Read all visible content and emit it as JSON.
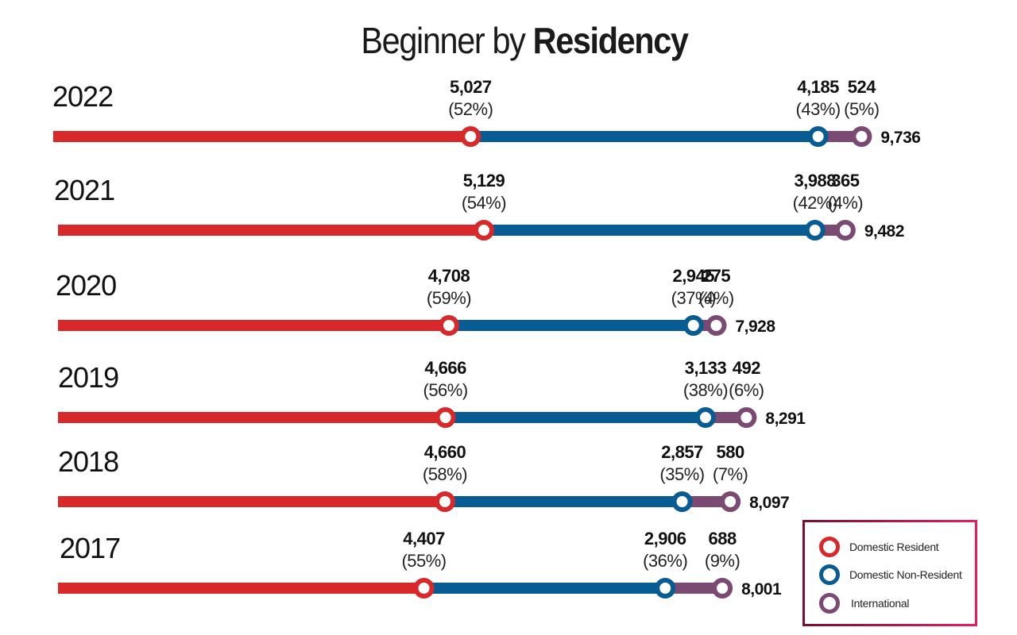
{
  "title": {
    "light": "Beginner by ",
    "bold": "Residency"
  },
  "legend": {
    "items": [
      {
        "label": "Domestic Resident",
        "color": "#d8282a"
      },
      {
        "label": "Domestic Non-Resident",
        "color": "#075c94"
      },
      {
        "label": "International",
        "color": "#7b4a72"
      }
    ]
  },
  "chart_data": {
    "type": "bar",
    "subtype": "stacked-horizontal-line",
    "title": "Beginner by Residency",
    "categories": [
      "2022",
      "2021",
      "2020",
      "2019",
      "2018",
      "2017"
    ],
    "series": [
      {
        "name": "Domestic Resident",
        "color": "#d8282a",
        "values": [
          5027,
          5129,
          4708,
          4666,
          4660,
          4407
        ],
        "percent_labels": [
          "(52%)",
          "(54%)",
          "(59%)",
          "(56%)",
          "(58%)",
          "(55%)"
        ],
        "value_labels": [
          "5,027",
          "5,129",
          "4,708",
          "4,666",
          "4,660",
          "4,407"
        ]
      },
      {
        "name": "Domestic Non-Resident",
        "color": "#075c94",
        "values": [
          4185,
          3988,
          2945,
          3133,
          2857,
          2906
        ],
        "percent_labels": [
          "(43%)",
          "(42%)",
          "(37%)",
          "(38%)",
          "(35%)",
          "(36%)"
        ],
        "value_labels": [
          "4,185",
          "3,988",
          "2,945",
          "3,133",
          "2,857",
          "2,906"
        ]
      },
      {
        "name": "International",
        "color": "#7b4a72",
        "values": [
          524,
          365,
          275,
          492,
          580,
          688
        ],
        "percent_labels": [
          "(5%)",
          "(4%)",
          "(4%)",
          "(6%)",
          "(7%)",
          "(9%)"
        ],
        "value_labels": [
          "524",
          "365",
          "275",
          "492",
          "580",
          "688"
        ]
      }
    ],
    "totals": [
      9736,
      9482,
      7928,
      8291,
      8097,
      8001
    ],
    "total_labels": [
      "9,736",
      "9,482",
      "7,928",
      "8,291",
      "8,097",
      "8,001"
    ],
    "xlabel": "",
    "ylabel": "",
    "grid": false,
    "legend_position": "bottom-right"
  }
}
